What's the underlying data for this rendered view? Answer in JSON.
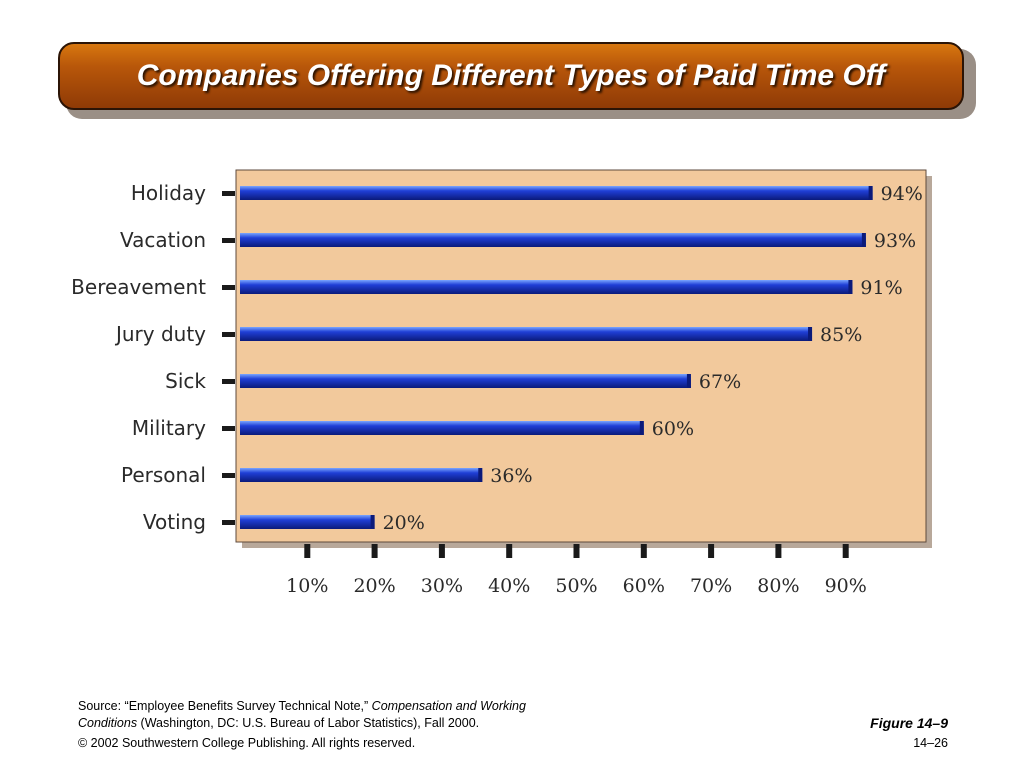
{
  "title": "Companies Offering Different Types of Paid Time Off",
  "chart_data": {
    "type": "bar",
    "orientation": "horizontal",
    "title": "",
    "xlabel": "",
    "ylabel": "",
    "categories": [
      "Holiday",
      "Vacation",
      "Bereavement",
      "Jury duty",
      "Sick",
      "Military",
      "Personal",
      "Voting"
    ],
    "values": [
      94,
      93,
      91,
      85,
      67,
      60,
      36,
      20
    ],
    "value_labels": [
      "94%",
      "93%",
      "91%",
      "85%",
      "67%",
      "60%",
      "36%",
      "20%"
    ],
    "x_ticks": [
      10,
      20,
      30,
      40,
      50,
      60,
      70,
      80,
      90
    ],
    "x_tick_labels": [
      "10%",
      "20%",
      "30%",
      "40%",
      "50%",
      "60%",
      "70%",
      "80%",
      "90%"
    ],
    "xlim": [
      0,
      100
    ],
    "grid": false,
    "colors": {
      "bar": "#1f3fd6",
      "bar_highlight": "#7aa6ff",
      "bar_dark": "#0b1a7a",
      "panel": "#f2c99c",
      "panel_edge": "#5e4a3c"
    }
  },
  "footer": {
    "source_prefix": "Source: “Employee Benefits Survey Technical Note,” ",
    "source_title_1": "Compensation and Working",
    "source_title_2": "Conditions",
    "source_suffix": " (Washington, DC: U.S. Bureau of Labor Statistics), Fall 2000.",
    "copyright": "© 2002 Southwestern College Publishing. All rights reserved.",
    "figure": "Figure 14–9",
    "page": "14–26"
  }
}
